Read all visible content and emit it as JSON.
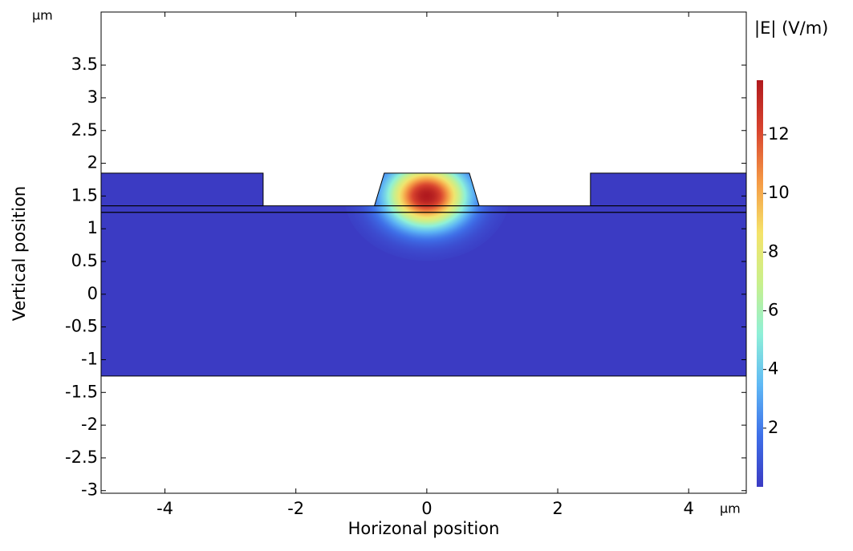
{
  "chart_data": {
    "type": "field",
    "xlabel": "Horizonal position",
    "ylabel": "Vertical position",
    "xunit": "µm",
    "yunit": "µm",
    "colorbar_title": "|E| (V/m)",
    "xlim": [
      -4.975,
      4.88
    ],
    "ylim": [
      -3.04,
      4.31
    ],
    "xticks": [
      -4,
      -2,
      0,
      2,
      4
    ],
    "yticks": [
      3.5,
      3,
      2.5,
      2,
      1.5,
      1,
      0.5,
      0,
      -0.5,
      -1,
      -1.5,
      -2,
      -2.5,
      -3
    ],
    "clim": [
      0,
      13.86
    ],
    "cticks": [
      2,
      4,
      6,
      8,
      10,
      12
    ],
    "colormap": [
      "#3b3bc3",
      "#3e6fe8",
      "#5fb8f5",
      "#8ef0d8",
      "#c8f08c",
      "#f5e36a",
      "#f59a45",
      "#d9452f",
      "#b0191e"
    ],
    "regions": [
      [
        [
          -4.975,
          -1.25
        ],
        [
          4.88,
          -1.25
        ],
        [
          4.88,
          1.25
        ],
        [
          -4.975,
          1.25
        ]
      ],
      [
        [
          -4.975,
          1.25
        ],
        [
          4.88,
          1.25
        ],
        [
          4.88,
          1.35
        ],
        [
          -4.975,
          1.35
        ]
      ],
      [
        [
          -4.975,
          1.35
        ],
        [
          -2.5,
          1.35
        ],
        [
          -2.5,
          1.85
        ],
        [
          -4.975,
          1.85
        ]
      ],
      [
        [
          2.5,
          1.35
        ],
        [
          4.88,
          1.35
        ],
        [
          4.88,
          1.85
        ],
        [
          2.5,
          1.85
        ]
      ],
      [
        [
          -0.8,
          1.35
        ],
        [
          0.8,
          1.35
        ],
        [
          0.65,
          1.85
        ],
        [
          -0.65,
          1.85
        ]
      ]
    ],
    "mode": {
      "x": 0,
      "y": 1.5,
      "peak": 13.86,
      "sx": 0.42,
      "sy": 0.33
    }
  }
}
